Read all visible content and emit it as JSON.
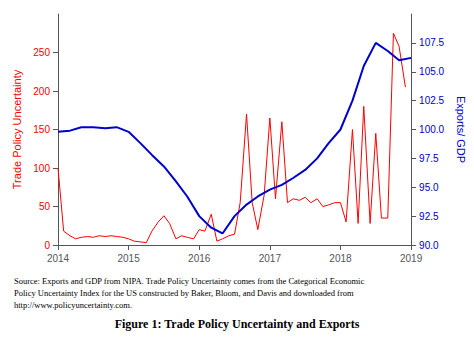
{
  "chart_data": {
    "type": "line",
    "title": "Figure 1: Trade Policy Uncertainty and Exports",
    "annotations": [
      "Source: Exports and GDP from NIPA. Trade Policy Uncertainty comes from the Categorical Economic\nPolicy Uncertainty Index for the US constructed by Baker, Bloom, and Davis and downloaded from\nhttp://www.policyuncertainty.com."
    ],
    "ylabel": "Trade Policy Uncertainty",
    "y2label": "Exports/ GDP",
    "xlim": [
      2014,
      2019
    ],
    "xticks": [
      2014,
      2015,
      2016,
      2017,
      2018,
      2019
    ],
    "ylim": [
      0,
      300
    ],
    "yticks": [
      0,
      50,
      100,
      150,
      200,
      250
    ],
    "y2lim": [
      90,
      110
    ],
    "y2ticks": [
      {
        "value": 90,
        "label": "90.0"
      },
      92.5,
      {
        "value": 95,
        "label": "95.0"
      },
      97.5,
      {
        "value": 100,
        "label": "100.0"
      },
      102.5,
      {
        "value": 105,
        "label": "105.0"
      },
      107.5
    ],
    "grid": false,
    "series": [
      {
        "color": "#ff0000",
        "x": [
          2014.0,
          2014.08,
          2014.17,
          2014.25,
          2014.33,
          2014.42,
          2014.5,
          2014.58,
          2014.67,
          2014.75,
          2014.83,
          2014.92,
          2015.0,
          2015.08,
          2015.17,
          2015.25,
          2015.33,
          2015.42,
          2015.5,
          2015.58,
          2015.67,
          2015.75,
          2015.83,
          2015.92,
          2016.0,
          2016.08,
          2016.17,
          2016.25,
          2016.33,
          2016.42,
          2016.5,
          2016.58,
          2016.67,
          2016.75,
          2016.83,
          2016.92,
          2017.0,
          2017.08,
          2017.17,
          2017.25,
          2017.33,
          2017.42,
          2017.5,
          2017.58,
          2017.67,
          2017.75,
          2017.83,
          2017.92,
          2018.0,
          2018.08,
          2018.17,
          2018.25,
          2018.33,
          2018.42,
          2018.5,
          2018.58,
          2018.67,
          2018.75,
          2018.83,
          2018.92
        ],
        "values": [
          100,
          18,
          12,
          8,
          10,
          11,
          10,
          12,
          11,
          12,
          11,
          10,
          8,
          5,
          4,
          3,
          18,
          30,
          38,
          28,
          8,
          12,
          10,
          8,
          20,
          18,
          40,
          5,
          8,
          12,
          14,
          55,
          170,
          55,
          20,
          65,
          165,
          60,
          160,
          55,
          60,
          58,
          62,
          55,
          60,
          50,
          52,
          55,
          55,
          30,
          150,
          28,
          180,
          28,
          145,
          35,
          35,
          275,
          258,
          205
        ]
      },
      {
        "color": "#0000cc",
        "axis": "y2",
        "x": [
          2014.0,
          2014.17,
          2014.33,
          2014.5,
          2014.67,
          2014.83,
          2015.0,
          2015.17,
          2015.33,
          2015.5,
          2015.67,
          2015.83,
          2016.0,
          2016.17,
          2016.33,
          2016.5,
          2016.67,
          2016.83,
          2017.0,
          2017.17,
          2017.33,
          2017.5,
          2017.67,
          2017.83,
          2018.0,
          2018.17,
          2018.33,
          2018.5,
          2018.67,
          2018.83,
          2019.0
        ],
        "values": [
          99.8,
          99.9,
          100.2,
          100.2,
          100.1,
          100.2,
          99.8,
          98.8,
          97.8,
          96.8,
          95.5,
          94.2,
          92.5,
          91.5,
          91.0,
          92.5,
          93.5,
          94.2,
          94.8,
          95.2,
          95.8,
          96.5,
          97.5,
          98.8,
          100.0,
          102.5,
          105.5,
          107.5,
          106.8,
          106.0,
          106.2
        ]
      }
    ]
  }
}
